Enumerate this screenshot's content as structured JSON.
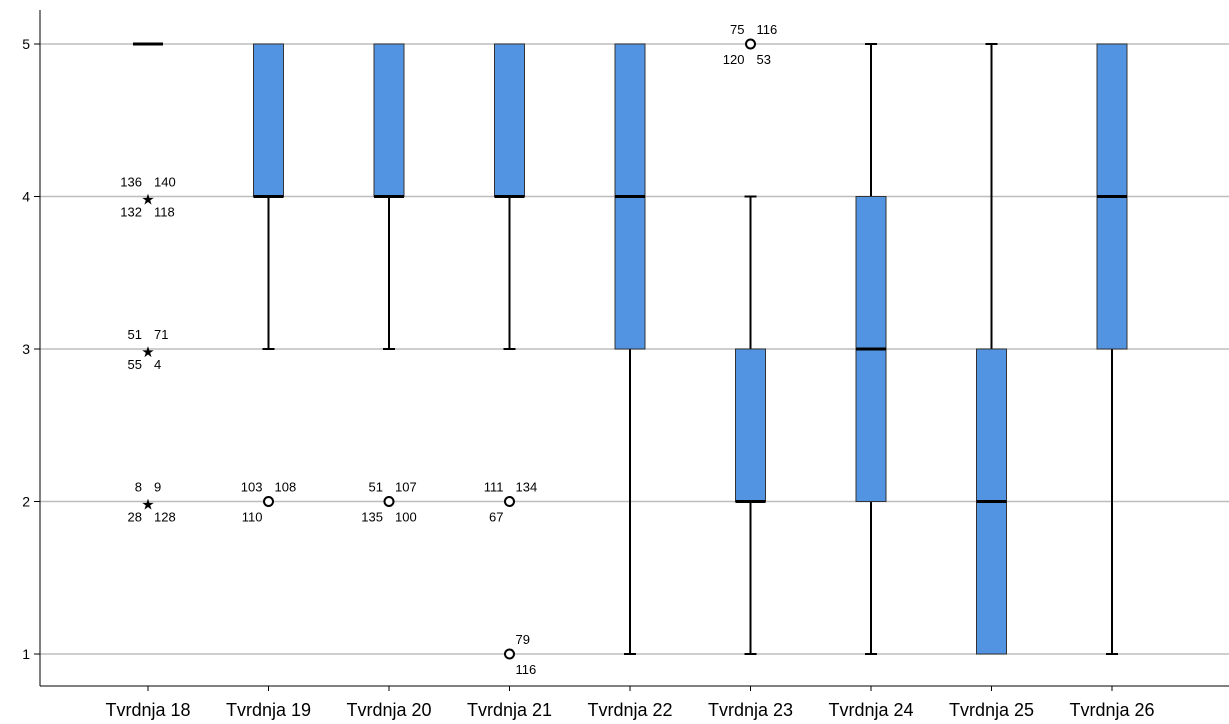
{
  "chart_data": {
    "type": "boxplot",
    "title": "",
    "xlabel": "",
    "ylabel": "",
    "ylim": [
      1,
      5
    ],
    "yticks": [
      1,
      2,
      3,
      4,
      5
    ],
    "grid": true,
    "colors": {
      "box": "#5294E2",
      "stroke": "#000000",
      "grid": "#BDBDBD"
    },
    "categories": [
      "Tvrdnja 18",
      "Tvrdnja 19",
      "Tvrdnja 20",
      "Tvrdnja 21",
      "Tvrdnja 22",
      "Tvrdnja 23",
      "Tvrdnja 24",
      "Tvrdnja 25",
      "Tvrdnja 26"
    ],
    "boxes": [
      {
        "min": 5,
        "q1": 5,
        "median": 5,
        "q3": 5,
        "max": 5
      },
      {
        "min": 3,
        "q1": 4,
        "median": 4,
        "q3": 5,
        "max": 5
      },
      {
        "min": 3,
        "q1": 4,
        "median": 4,
        "q3": 5,
        "max": 5
      },
      {
        "min": 3,
        "q1": 4,
        "median": 4,
        "q3": 5,
        "max": 5
      },
      {
        "min": 1,
        "q1": 3,
        "median": 4,
        "q3": 5,
        "max": 5
      },
      {
        "min": 1,
        "q1": 2,
        "median": 2,
        "q3": 3,
        "max": 4
      },
      {
        "min": 1,
        "q1": 2,
        "median": 3,
        "q3": 4,
        "max": 5
      },
      {
        "min": 1,
        "q1": 1,
        "median": 2,
        "q3": 3,
        "max": 5
      },
      {
        "min": 1,
        "q1": 3,
        "median": 4,
        "q3": 5,
        "max": 5
      }
    ],
    "outliers": [
      {
        "category": 0,
        "value": 4,
        "marker": "star",
        "labels": [
          "136",
          "140",
          "132",
          "118"
        ]
      },
      {
        "category": 0,
        "value": 3,
        "marker": "star",
        "labels": [
          "51",
          "71",
          "55",
          "4"
        ]
      },
      {
        "category": 0,
        "value": 2,
        "marker": "star",
        "labels": [
          "8",
          "9",
          "28",
          "128"
        ]
      },
      {
        "category": 1,
        "value": 2,
        "marker": "circle",
        "labels": [
          "103",
          "108",
          "110"
        ]
      },
      {
        "category": 2,
        "value": 2,
        "marker": "circle",
        "labels": [
          "51",
          "107",
          "135",
          "100"
        ]
      },
      {
        "category": 3,
        "value": 2,
        "marker": "circle",
        "labels": [
          "111",
          "134",
          "67"
        ]
      },
      {
        "category": 3,
        "value": 1,
        "marker": "circle",
        "labels": [
          "79",
          "116"
        ]
      },
      {
        "category": 5,
        "value": 5,
        "marker": "circle",
        "labels": [
          "75",
          "116",
          "120",
          "53"
        ]
      }
    ]
  }
}
